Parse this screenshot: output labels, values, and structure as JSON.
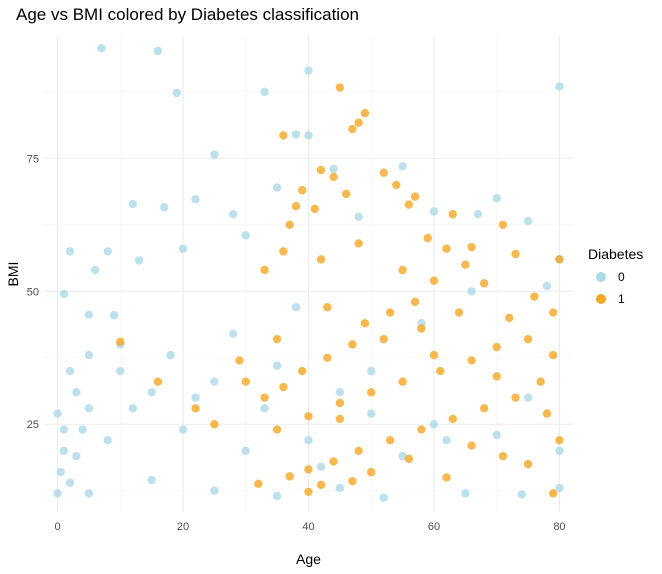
{
  "title": "Age vs BMI colored by Diabetes classification",
  "chart_data": {
    "type": "scatter",
    "title": "Age vs BMI colored by Diabetes classification",
    "xlabel": "Age",
    "ylabel": "BMI",
    "xlim": [
      -2,
      82
    ],
    "ylim": [
      8.5,
      98
    ],
    "x_ticks": [
      0,
      20,
      40,
      60,
      80
    ],
    "y_ticks": [
      25,
      50,
      75
    ],
    "grid": true,
    "legend": {
      "title": "Diabetes",
      "placement": "right",
      "entries": [
        "0",
        "1"
      ]
    },
    "series": [
      {
        "name": "0",
        "color": "#ADD8E6",
        "points": [
          [
            7,
            95.7
          ],
          [
            16,
            95.2
          ],
          [
            19,
            87.3
          ],
          [
            40,
            91.5
          ],
          [
            33,
            87.5
          ],
          [
            80,
            88.5
          ],
          [
            25,
            75.7
          ],
          [
            38,
            79.5
          ],
          [
            40,
            79.3
          ],
          [
            12,
            66.4
          ],
          [
            17,
            65.8
          ],
          [
            22,
            67.3
          ],
          [
            28,
            64.5
          ],
          [
            35,
            69.5
          ],
          [
            44,
            73
          ],
          [
            55,
            73.5
          ],
          [
            70,
            67.5
          ],
          [
            67,
            64.5
          ],
          [
            2,
            57.5
          ],
          [
            8,
            57.5
          ],
          [
            6,
            54
          ],
          [
            1,
            49.5
          ],
          [
            5,
            45.6
          ],
          [
            9,
            45.5
          ],
          [
            13,
            55.8
          ],
          [
            20,
            58
          ],
          [
            30,
            60.5
          ],
          [
            48,
            64
          ],
          [
            60,
            65
          ],
          [
            75,
            63.2
          ],
          [
            80,
            56
          ],
          [
            78,
            51
          ],
          [
            5,
            38
          ],
          [
            2,
            35
          ],
          [
            3,
            31
          ],
          [
            10,
            40
          ],
          [
            4,
            24
          ],
          [
            1,
            20
          ],
          [
            0,
            12
          ],
          [
            0.5,
            16
          ],
          [
            2,
            14
          ],
          [
            5,
            12
          ],
          [
            15,
            14.5
          ],
          [
            25,
            12.5
          ],
          [
            35,
            11.5
          ],
          [
            45,
            13
          ],
          [
            52,
            11.2
          ],
          [
            65,
            12
          ],
          [
            74,
            11.8
          ],
          [
            80,
            13
          ],
          [
            80,
            20
          ],
          [
            75,
            30
          ],
          [
            62,
            22
          ],
          [
            55,
            19
          ],
          [
            42,
            17
          ],
          [
            30,
            20
          ],
          [
            20,
            24
          ],
          [
            12,
            28
          ],
          [
            25,
            33
          ],
          [
            35,
            36
          ],
          [
            45,
            31
          ],
          [
            50,
            27
          ],
          [
            60,
            25
          ],
          [
            70,
            23
          ],
          [
            58,
            44
          ],
          [
            66,
            50
          ],
          [
            38,
            47
          ],
          [
            28,
            42
          ],
          [
            18,
            38
          ],
          [
            15,
            31
          ],
          [
            8,
            22
          ],
          [
            3,
            19
          ],
          [
            0,
            27
          ],
          [
            40,
            22
          ],
          [
            50,
            35
          ],
          [
            33,
            28
          ],
          [
            22,
            30
          ],
          [
            10,
            35
          ],
          [
            5,
            28
          ],
          [
            1,
            24
          ]
        ]
      },
      {
        "name": "1",
        "color": "#F5A623",
        "points": [
          [
            45,
            88.3
          ],
          [
            49,
            83.5
          ],
          [
            48,
            81.7
          ],
          [
            36,
            79.3
          ],
          [
            47,
            80.5
          ],
          [
            42,
            72.8
          ],
          [
            52,
            72.3
          ],
          [
            44,
            71.5
          ],
          [
            46,
            68.3
          ],
          [
            39,
            69
          ],
          [
            54,
            70
          ],
          [
            57,
            67.8
          ],
          [
            38,
            66
          ],
          [
            41,
            65.5
          ],
          [
            56,
            66.3
          ],
          [
            63,
            64.5
          ],
          [
            71,
            62.5
          ],
          [
            80,
            56
          ],
          [
            66,
            58.3
          ],
          [
            62,
            58
          ],
          [
            73,
            57
          ],
          [
            59,
            60
          ],
          [
            48,
            59
          ],
          [
            37,
            62.5
          ],
          [
            33,
            54
          ],
          [
            36,
            57.5
          ],
          [
            42,
            56
          ],
          [
            55,
            54
          ],
          [
            60,
            52
          ],
          [
            68,
            51.5
          ],
          [
            76,
            49
          ],
          [
            79,
            46
          ],
          [
            72,
            45
          ],
          [
            64,
            46
          ],
          [
            58,
            43
          ],
          [
            52,
            41
          ],
          [
            47,
            40
          ],
          [
            43,
            37.5
          ],
          [
            39,
            35
          ],
          [
            36,
            32
          ],
          [
            33,
            30
          ],
          [
            35,
            24
          ],
          [
            40,
            26.5
          ],
          [
            45,
            29
          ],
          [
            50,
            31
          ],
          [
            55,
            33
          ],
          [
            61,
            35
          ],
          [
            66,
            37
          ],
          [
            70,
            39.5
          ],
          [
            75,
            41
          ],
          [
            79,
            38
          ],
          [
            77,
            33
          ],
          [
            73,
            30
          ],
          [
            68,
            28
          ],
          [
            63,
            26
          ],
          [
            58,
            24
          ],
          [
            53,
            22
          ],
          [
            48,
            20
          ],
          [
            44,
            18
          ],
          [
            40,
            16.5
          ],
          [
            37,
            15.2
          ],
          [
            32,
            13.8
          ],
          [
            40,
            12.3
          ],
          [
            42,
            13.6
          ],
          [
            47,
            14.3
          ],
          [
            50,
            16
          ],
          [
            56,
            18.5
          ],
          [
            62,
            15
          ],
          [
            66,
            21
          ],
          [
            71,
            19
          ],
          [
            75,
            17.5
          ],
          [
            79,
            12
          ],
          [
            80,
            22
          ],
          [
            45,
            26
          ],
          [
            53,
            46
          ],
          [
            65,
            55
          ],
          [
            57,
            48
          ],
          [
            49,
            44
          ],
          [
            43,
            47
          ],
          [
            35,
            41
          ],
          [
            30,
            33
          ],
          [
            29,
            37
          ],
          [
            25,
            25
          ],
          [
            22,
            28
          ],
          [
            16,
            33
          ],
          [
            10,
            40.5
          ],
          [
            60,
            38
          ],
          [
            70,
            34
          ],
          [
            78,
            27
          ]
        ]
      }
    ]
  }
}
